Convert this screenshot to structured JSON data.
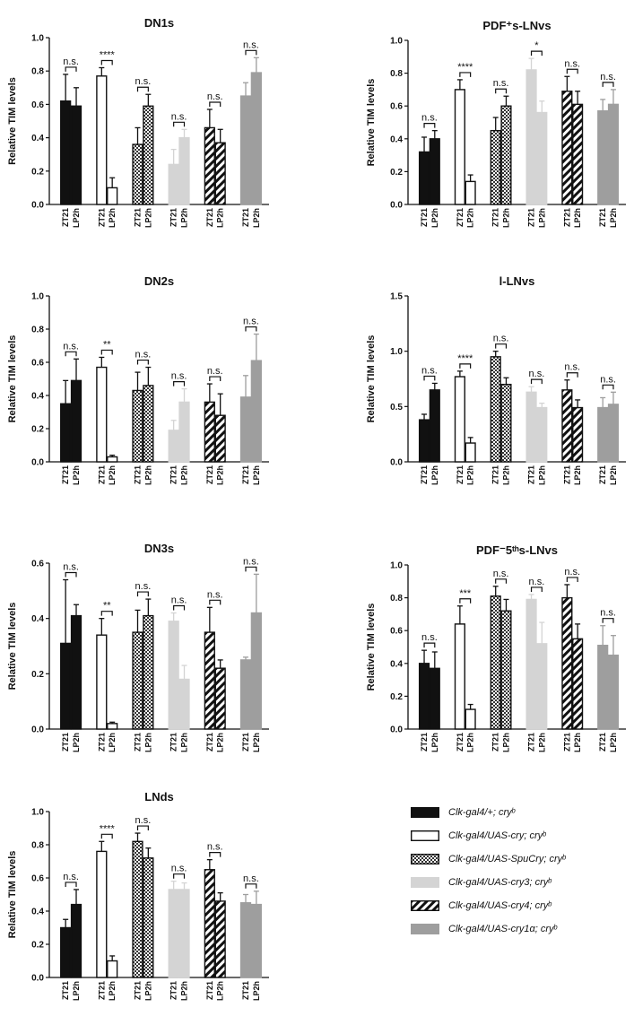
{
  "styles": {
    "black": {
      "fill": "#111111",
      "pattern": "solid"
    },
    "white": {
      "fill": "#ffffff",
      "pattern": "solid"
    },
    "checker": {
      "fill": "#777777",
      "pattern": "checker"
    },
    "lightgray": {
      "fill": "#d4d4d4",
      "pattern": "solid"
    },
    "stripe": {
      "fill": "#111111",
      "pattern": "stripe"
    },
    "gray": {
      "fill": "#9e9e9e",
      "pattern": "solid"
    }
  },
  "legend": [
    {
      "label": "Clk-gal4/+; cryᵇ",
      "style": "black"
    },
    {
      "label": "Clk-gal4/UAS-cry; cryᵇ",
      "style": "white"
    },
    {
      "label": "Clk-gal4/UAS-SpuCry; cryᵇ",
      "style": "checker"
    },
    {
      "label": "Clk-gal4/UAS-cry3; cryᵇ",
      "style": "lightgray"
    },
    {
      "label": "Clk-gal4/UAS-cry4; cryᵇ",
      "style": "stripe"
    },
    {
      "label": "Clk-gal4/UAS-cry1α; cryᵇ",
      "style": "gray"
    }
  ],
  "chart_data": [
    {
      "type": "bar",
      "title": "DN1s",
      "ylabel": "Relative TIM levels",
      "ylim": [
        0,
        1.0
      ],
      "yticks": [
        "0.0",
        "0.2",
        "0.4",
        "0.6",
        "0.8",
        "1.0"
      ],
      "categories": [
        "ZT21",
        "LP2h"
      ],
      "groups": [
        {
          "style": "black",
          "values": [
            0.62,
            0.59
          ],
          "errors": [
            0.16,
            0.11
          ],
          "sig": "n.s."
        },
        {
          "style": "white",
          "values": [
            0.77,
            0.1
          ],
          "errors": [
            0.05,
            0.06
          ],
          "sig": "****"
        },
        {
          "style": "checker",
          "values": [
            0.36,
            0.59
          ],
          "errors": [
            0.1,
            0.07
          ],
          "sig": "n.s."
        },
        {
          "style": "lightgray",
          "values": [
            0.24,
            0.4
          ],
          "errors": [
            0.09,
            0.05
          ],
          "sig": "n.s."
        },
        {
          "style": "stripe",
          "values": [
            0.46,
            0.37
          ],
          "errors": [
            0.11,
            0.08
          ],
          "sig": "n.s."
        },
        {
          "style": "gray",
          "values": [
            0.65,
            0.79
          ],
          "errors": [
            0.08,
            0.09
          ],
          "sig": "n.s."
        }
      ]
    },
    {
      "type": "bar",
      "title": "PDF⁺s-LNvs",
      "ylabel": "Relative TIM levels",
      "ylim": [
        0,
        1.0
      ],
      "yticks": [
        "0.0",
        "0.2",
        "0.4",
        "0.6",
        "0.8",
        "1.0"
      ],
      "categories": [
        "ZT21",
        "LP2h"
      ],
      "groups": [
        {
          "style": "black",
          "values": [
            0.32,
            0.4
          ],
          "errors": [
            0.09,
            0.05
          ],
          "sig": "n.s."
        },
        {
          "style": "white",
          "values": [
            0.7,
            0.14
          ],
          "errors": [
            0.06,
            0.04
          ],
          "sig": "****"
        },
        {
          "style": "checker",
          "values": [
            0.45,
            0.6
          ],
          "errors": [
            0.08,
            0.06
          ],
          "sig": "n.s."
        },
        {
          "style": "lightgray",
          "values": [
            0.82,
            0.56
          ],
          "errors": [
            0.07,
            0.07
          ],
          "sig": "*"
        },
        {
          "style": "stripe",
          "values": [
            0.69,
            0.61
          ],
          "errors": [
            0.09,
            0.08
          ],
          "sig": "n.s."
        },
        {
          "style": "gray",
          "values": [
            0.57,
            0.61
          ],
          "errors": [
            0.07,
            0.09
          ],
          "sig": "n.s."
        }
      ]
    },
    {
      "type": "bar",
      "title": "DN2s",
      "ylabel": "Relative TIM levels",
      "ylim": [
        0,
        1.0
      ],
      "yticks": [
        "0.0",
        "0.2",
        "0.4",
        "0.6",
        "0.8",
        "1.0"
      ],
      "categories": [
        "ZT21",
        "LP2h"
      ],
      "groups": [
        {
          "style": "black",
          "values": [
            0.35,
            0.49
          ],
          "errors": [
            0.14,
            0.13
          ],
          "sig": "n.s."
        },
        {
          "style": "white",
          "values": [
            0.57,
            0.03
          ],
          "errors": [
            0.06,
            0.01
          ],
          "sig": "**"
        },
        {
          "style": "checker",
          "values": [
            0.43,
            0.46
          ],
          "errors": [
            0.11,
            0.11
          ],
          "sig": "n.s."
        },
        {
          "style": "lightgray",
          "values": [
            0.19,
            0.36
          ],
          "errors": [
            0.06,
            0.08
          ],
          "sig": "n.s."
        },
        {
          "style": "stripe",
          "values": [
            0.36,
            0.28
          ],
          "errors": [
            0.11,
            0.13
          ],
          "sig": "n.s."
        },
        {
          "style": "gray",
          "values": [
            0.39,
            0.61
          ],
          "errors": [
            0.13,
            0.16
          ],
          "sig": "n.s."
        }
      ]
    },
    {
      "type": "bar",
      "title": "l-LNvs",
      "ylabel": "Relative TIM levels",
      "ylim": [
        0,
        1.5
      ],
      "yticks": [
        "0.0",
        "0.5",
        "1.0",
        "1.5"
      ],
      "categories": [
        "ZT21",
        "LP2h"
      ],
      "groups": [
        {
          "style": "black",
          "values": [
            0.38,
            0.65
          ],
          "errors": [
            0.05,
            0.06
          ],
          "sig": "n.s."
        },
        {
          "style": "white",
          "values": [
            0.77,
            0.17
          ],
          "errors": [
            0.05,
            0.05
          ],
          "sig": "****"
        },
        {
          "style": "checker",
          "values": [
            0.95,
            0.7
          ],
          "errors": [
            0.05,
            0.06
          ],
          "sig": "n.s."
        },
        {
          "style": "lightgray",
          "values": [
            0.63,
            0.49
          ],
          "errors": [
            0.05,
            0.04
          ],
          "sig": "n.s."
        },
        {
          "style": "stripe",
          "values": [
            0.65,
            0.49
          ],
          "errors": [
            0.09,
            0.07
          ],
          "sig": "n.s."
        },
        {
          "style": "gray",
          "values": [
            0.49,
            0.52
          ],
          "errors": [
            0.09,
            0.11
          ],
          "sig": "n.s."
        }
      ]
    },
    {
      "type": "bar",
      "title": "DN3s",
      "ylabel": "Relative TIM levels",
      "ylim": [
        0,
        0.6
      ],
      "yticks": [
        "0.0",
        "0.2",
        "0.4",
        "0.6"
      ],
      "categories": [
        "ZT21",
        "LP2h"
      ],
      "groups": [
        {
          "style": "black",
          "values": [
            0.31,
            0.41
          ],
          "errors": [
            0.23,
            0.04
          ],
          "sig": "n.s."
        },
        {
          "style": "white",
          "values": [
            0.34,
            0.02
          ],
          "errors": [
            0.06,
            0.005
          ],
          "sig": "**"
        },
        {
          "style": "checker",
          "values": [
            0.35,
            0.41
          ],
          "errors": [
            0.08,
            0.06
          ],
          "sig": "n.s."
        },
        {
          "style": "lightgray",
          "values": [
            0.39,
            0.18
          ],
          "errors": [
            0.03,
            0.05
          ],
          "sig": "n.s."
        },
        {
          "style": "stripe",
          "values": [
            0.35,
            0.22
          ],
          "errors": [
            0.09,
            0.03
          ],
          "sig": "n.s."
        },
        {
          "style": "gray",
          "values": [
            0.25,
            0.42
          ],
          "errors": [
            0.01,
            0.14
          ],
          "sig": "n.s."
        }
      ]
    },
    {
      "type": "bar",
      "title": "PDF⁻5ᵗʰs-LNvs",
      "ylabel": "Relative TIM levels",
      "ylim": [
        0,
        1.0
      ],
      "yticks": [
        "0.0",
        "0.2",
        "0.4",
        "0.6",
        "0.8",
        "1.0"
      ],
      "categories": [
        "ZT21",
        "LP2h"
      ],
      "groups": [
        {
          "style": "black",
          "values": [
            0.4,
            0.37
          ],
          "errors": [
            0.08,
            0.1
          ],
          "sig": "n.s."
        },
        {
          "style": "white",
          "values": [
            0.64,
            0.12
          ],
          "errors": [
            0.11,
            0.03
          ],
          "sig": "***"
        },
        {
          "style": "checker",
          "values": [
            0.81,
            0.72
          ],
          "errors": [
            0.06,
            0.07
          ],
          "sig": "n.s."
        },
        {
          "style": "lightgray",
          "values": [
            0.79,
            0.52
          ],
          "errors": [
            0.03,
            0.13
          ],
          "sig": "n.s."
        },
        {
          "style": "stripe",
          "values": [
            0.8,
            0.55
          ],
          "errors": [
            0.08,
            0.09
          ],
          "sig": "n.s."
        },
        {
          "style": "gray",
          "values": [
            0.51,
            0.45
          ],
          "errors": [
            0.12,
            0.12
          ],
          "sig": "n.s."
        }
      ]
    },
    {
      "type": "bar",
      "title": "LNds",
      "ylabel": "Relative TIM levels",
      "ylim": [
        0,
        1.0
      ],
      "yticks": [
        "0.0",
        "0.2",
        "0.4",
        "0.6",
        "0.8",
        "1.0"
      ],
      "categories": [
        "ZT21",
        "LP2h"
      ],
      "groups": [
        {
          "style": "black",
          "values": [
            0.3,
            0.44
          ],
          "errors": [
            0.05,
            0.09
          ],
          "sig": "n.s."
        },
        {
          "style": "white",
          "values": [
            0.76,
            0.1
          ],
          "errors": [
            0.06,
            0.03
          ],
          "sig": "****"
        },
        {
          "style": "checker",
          "values": [
            0.82,
            0.72
          ],
          "errors": [
            0.05,
            0.06
          ],
          "sig": "n.s."
        },
        {
          "style": "lightgray",
          "values": [
            0.53,
            0.53
          ],
          "errors": [
            0.05,
            0.04
          ],
          "sig": "n.s."
        },
        {
          "style": "stripe",
          "values": [
            0.65,
            0.46
          ],
          "errors": [
            0.06,
            0.05
          ],
          "sig": "n.s."
        },
        {
          "style": "gray",
          "values": [
            0.45,
            0.44
          ],
          "errors": [
            0.05,
            0.08
          ],
          "sig": "n.s."
        }
      ]
    }
  ]
}
